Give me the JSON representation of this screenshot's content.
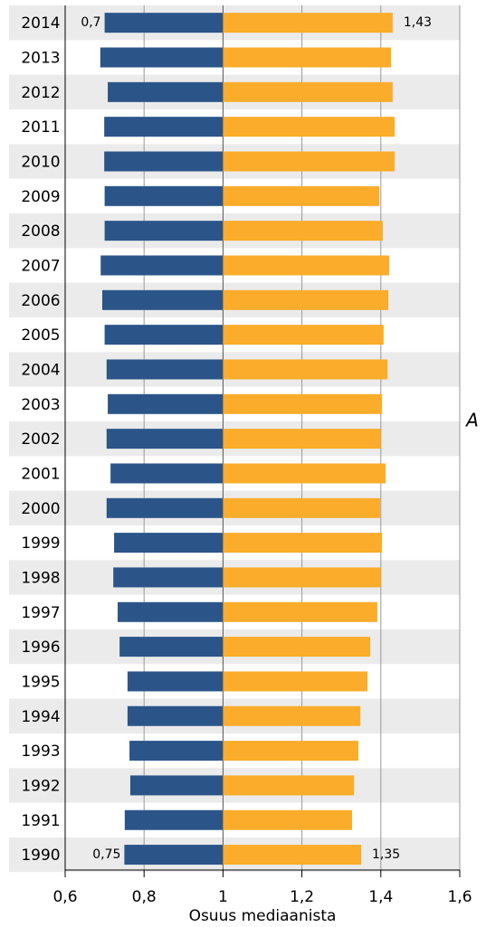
{
  "chart_data": {
    "type": "diverging-bar",
    "xlabel": "Osuus mediaanista",
    "annotation": "A",
    "categories": [
      "2014",
      "2013",
      "2012",
      "2011",
      "2010",
      "2009",
      "2008",
      "2007",
      "2006",
      "2005",
      "2004",
      "2003",
      "2002",
      "2001",
      "2000",
      "1999",
      "1998",
      "1997",
      "1996",
      "1995",
      "1994",
      "1993",
      "1992",
      "1991",
      "1990"
    ],
    "baseline": 1,
    "series": [
      {
        "color": "#2b5589",
        "values": [
          0.7,
          0.689,
          0.708,
          0.699,
          0.699,
          0.7,
          0.7,
          0.69,
          0.694,
          0.7,
          0.705,
          0.708,
          0.705,
          0.715,
          0.705,
          0.724,
          0.722,
          0.733,
          0.738,
          0.758,
          0.758,
          0.763,
          0.765,
          0.751,
          0.75
        ],
        "value_labels": [
          "0,7",
          null,
          null,
          null,
          null,
          null,
          null,
          null,
          null,
          null,
          null,
          null,
          null,
          null,
          null,
          null,
          null,
          null,
          null,
          null,
          null,
          null,
          null,
          null,
          "0,75"
        ]
      },
      {
        "color": "#fbac2b",
        "values": [
          1.43,
          1.426,
          1.43,
          1.435,
          1.435,
          1.396,
          1.405,
          1.421,
          1.419,
          1.407,
          1.417,
          1.403,
          1.4,
          1.412,
          1.398,
          1.403,
          1.4,
          1.391,
          1.373,
          1.366,
          1.348,
          1.343,
          1.332,
          1.327,
          1.35
        ],
        "value_labels": [
          "1,43",
          null,
          null,
          null,
          null,
          null,
          null,
          null,
          null,
          null,
          null,
          null,
          null,
          null,
          null,
          null,
          null,
          null,
          null,
          null,
          null,
          null,
          null,
          null,
          "1,35"
        ]
      }
    ],
    "xlim": [
      0.6,
      1.6
    ],
    "xticks": [
      {
        "value": 0.6,
        "label": "0,6"
      },
      {
        "value": 0.8,
        "label": "0,8"
      },
      {
        "value": 1,
        "label": "1"
      },
      {
        "value": 1.2,
        "label": "1,2"
      },
      {
        "value": 1.4,
        "label": "1,4"
      },
      {
        "value": 1.6,
        "label": "1,6"
      }
    ],
    "grid": true
  }
}
